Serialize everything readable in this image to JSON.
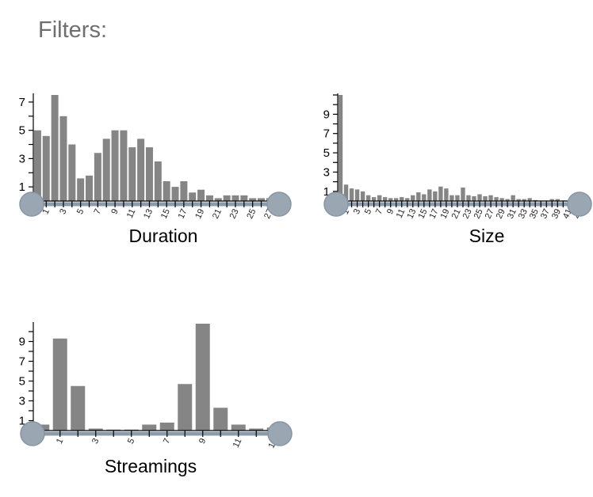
{
  "heading": "Filters:",
  "colors": {
    "bar": "#858585",
    "track": "#8b9bab",
    "handle": "#9aa6b1"
  },
  "chart_data": [
    {
      "type": "bar",
      "title": "Duration",
      "x": [
        0,
        1,
        2,
        3,
        4,
        5,
        6,
        7,
        8,
        9,
        10,
        11,
        12,
        13,
        14,
        15,
        16,
        17,
        18,
        19,
        20,
        21,
        22,
        23,
        24,
        25,
        26,
        27
      ],
      "values": [
        5.0,
        4.6,
        7.5,
        6.0,
        4.0,
        1.6,
        1.8,
        3.4,
        4.4,
        5.0,
        5.0,
        3.8,
        4.4,
        3.8,
        2.8,
        1.4,
        1.0,
        1.4,
        0.6,
        0.8,
        0.4,
        0.2,
        0.4,
        0.4,
        0.4,
        0.2,
        0.2,
        0.2
      ],
      "y_ticks": [
        1,
        3,
        5,
        7
      ],
      "x_tick_labels": [
        "1",
        "3",
        "5",
        "7",
        "9",
        "11",
        "13",
        "15",
        "17",
        "19",
        "21",
        "23",
        "25",
        "27"
      ],
      "ylim": [
        0,
        7.5
      ],
      "range_filter": {
        "min": 0,
        "max": 27
      }
    },
    {
      "type": "bar",
      "title": "Size",
      "x": [
        0,
        1,
        2,
        3,
        4,
        5,
        6,
        7,
        8,
        9,
        10,
        11,
        12,
        13,
        14,
        15,
        16,
        17,
        18,
        19,
        20,
        21,
        22,
        23,
        24,
        25,
        26,
        27,
        28,
        29,
        30,
        31,
        32,
        33,
        34,
        35,
        36,
        37,
        38,
        39,
        40,
        41,
        42,
        43
      ],
      "values": [
        11,
        1.7,
        1.3,
        1.2,
        1.0,
        0.6,
        0.4,
        0.6,
        0.4,
        0.3,
        0.3,
        0.4,
        0.3,
        0.6,
        0.9,
        0.7,
        1.2,
        1.0,
        1.5,
        1.3,
        0.6,
        0.6,
        1.4,
        0.6,
        0.5,
        0.7,
        0.5,
        0.6,
        0.4,
        0.3,
        0.2,
        0.6,
        0.2,
        0.2,
        0.3,
        0.1,
        0.05,
        0.05,
        0.2,
        0.2,
        0.05,
        0.05,
        0.05,
        0.05
      ],
      "y_ticks": [
        1,
        3,
        5,
        7,
        9
      ],
      "x_tick_labels": [
        "1",
        "3",
        "5",
        "7",
        "9",
        "11",
        "13",
        "15",
        "17",
        "19",
        "21",
        "23",
        "25",
        "27",
        "29",
        "31",
        "33",
        "35",
        "37",
        "39",
        "41",
        "43"
      ],
      "ylim": [
        0,
        11
      ],
      "range_filter": {
        "min": 0,
        "max": 43
      }
    },
    {
      "type": "bar",
      "title": "Streamings",
      "x": [
        0,
        1,
        2,
        3,
        4,
        5,
        6,
        7,
        8,
        9,
        10,
        11,
        12,
        13
      ],
      "values": [
        0.6,
        9.3,
        4.5,
        0.2,
        0.1,
        0.1,
        0.6,
        0.8,
        4.7,
        10.8,
        2.3,
        0.6,
        0.2,
        0.3
      ],
      "y_ticks": [
        1,
        3,
        5,
        7,
        9
      ],
      "x_tick_labels": [
        "1",
        "3",
        "5",
        "7",
        "9",
        "11",
        "13"
      ],
      "ylim": [
        0,
        10.8
      ],
      "range_filter": {
        "min": 0,
        "max": 13
      }
    }
  ]
}
